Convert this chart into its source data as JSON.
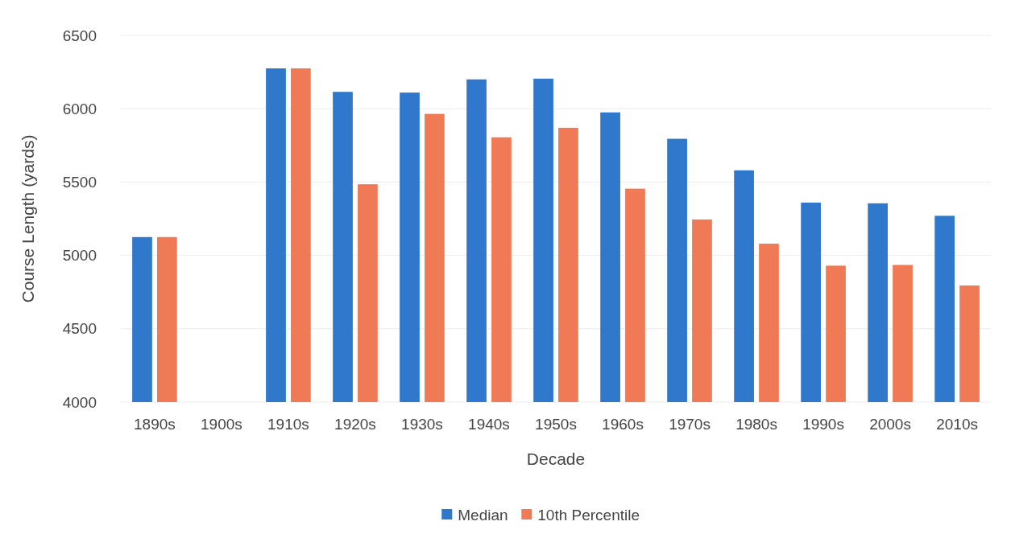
{
  "chart_data": {
    "type": "bar",
    "xlabel": "Decade",
    "ylabel": "Course Length (yards)",
    "categories": [
      "1890s",
      "1900s",
      "1910s",
      "1920s",
      "1930s",
      "1940s",
      "1950s",
      "1960s",
      "1970s",
      "1980s",
      "1990s",
      "2000s",
      "2010s"
    ],
    "series": [
      {
        "name": "Median",
        "color": "#2f78cc",
        "values": [
          5125,
          null,
          6275,
          6115,
          6110,
          6200,
          6205,
          5975,
          5795,
          5580,
          5360,
          5355,
          5270
        ]
      },
      {
        "name": "10th Percentile",
        "color": "#f07a55",
        "values": [
          5125,
          null,
          6275,
          5485,
          5965,
          5805,
          5870,
          5455,
          5245,
          5080,
          4930,
          4935,
          4795
        ]
      }
    ],
    "ylim": [
      4000,
      6500
    ],
    "yticks": [
      4000,
      4500,
      5000,
      5500,
      6000,
      6500
    ],
    "grid": "y",
    "legend": "bottom"
  }
}
